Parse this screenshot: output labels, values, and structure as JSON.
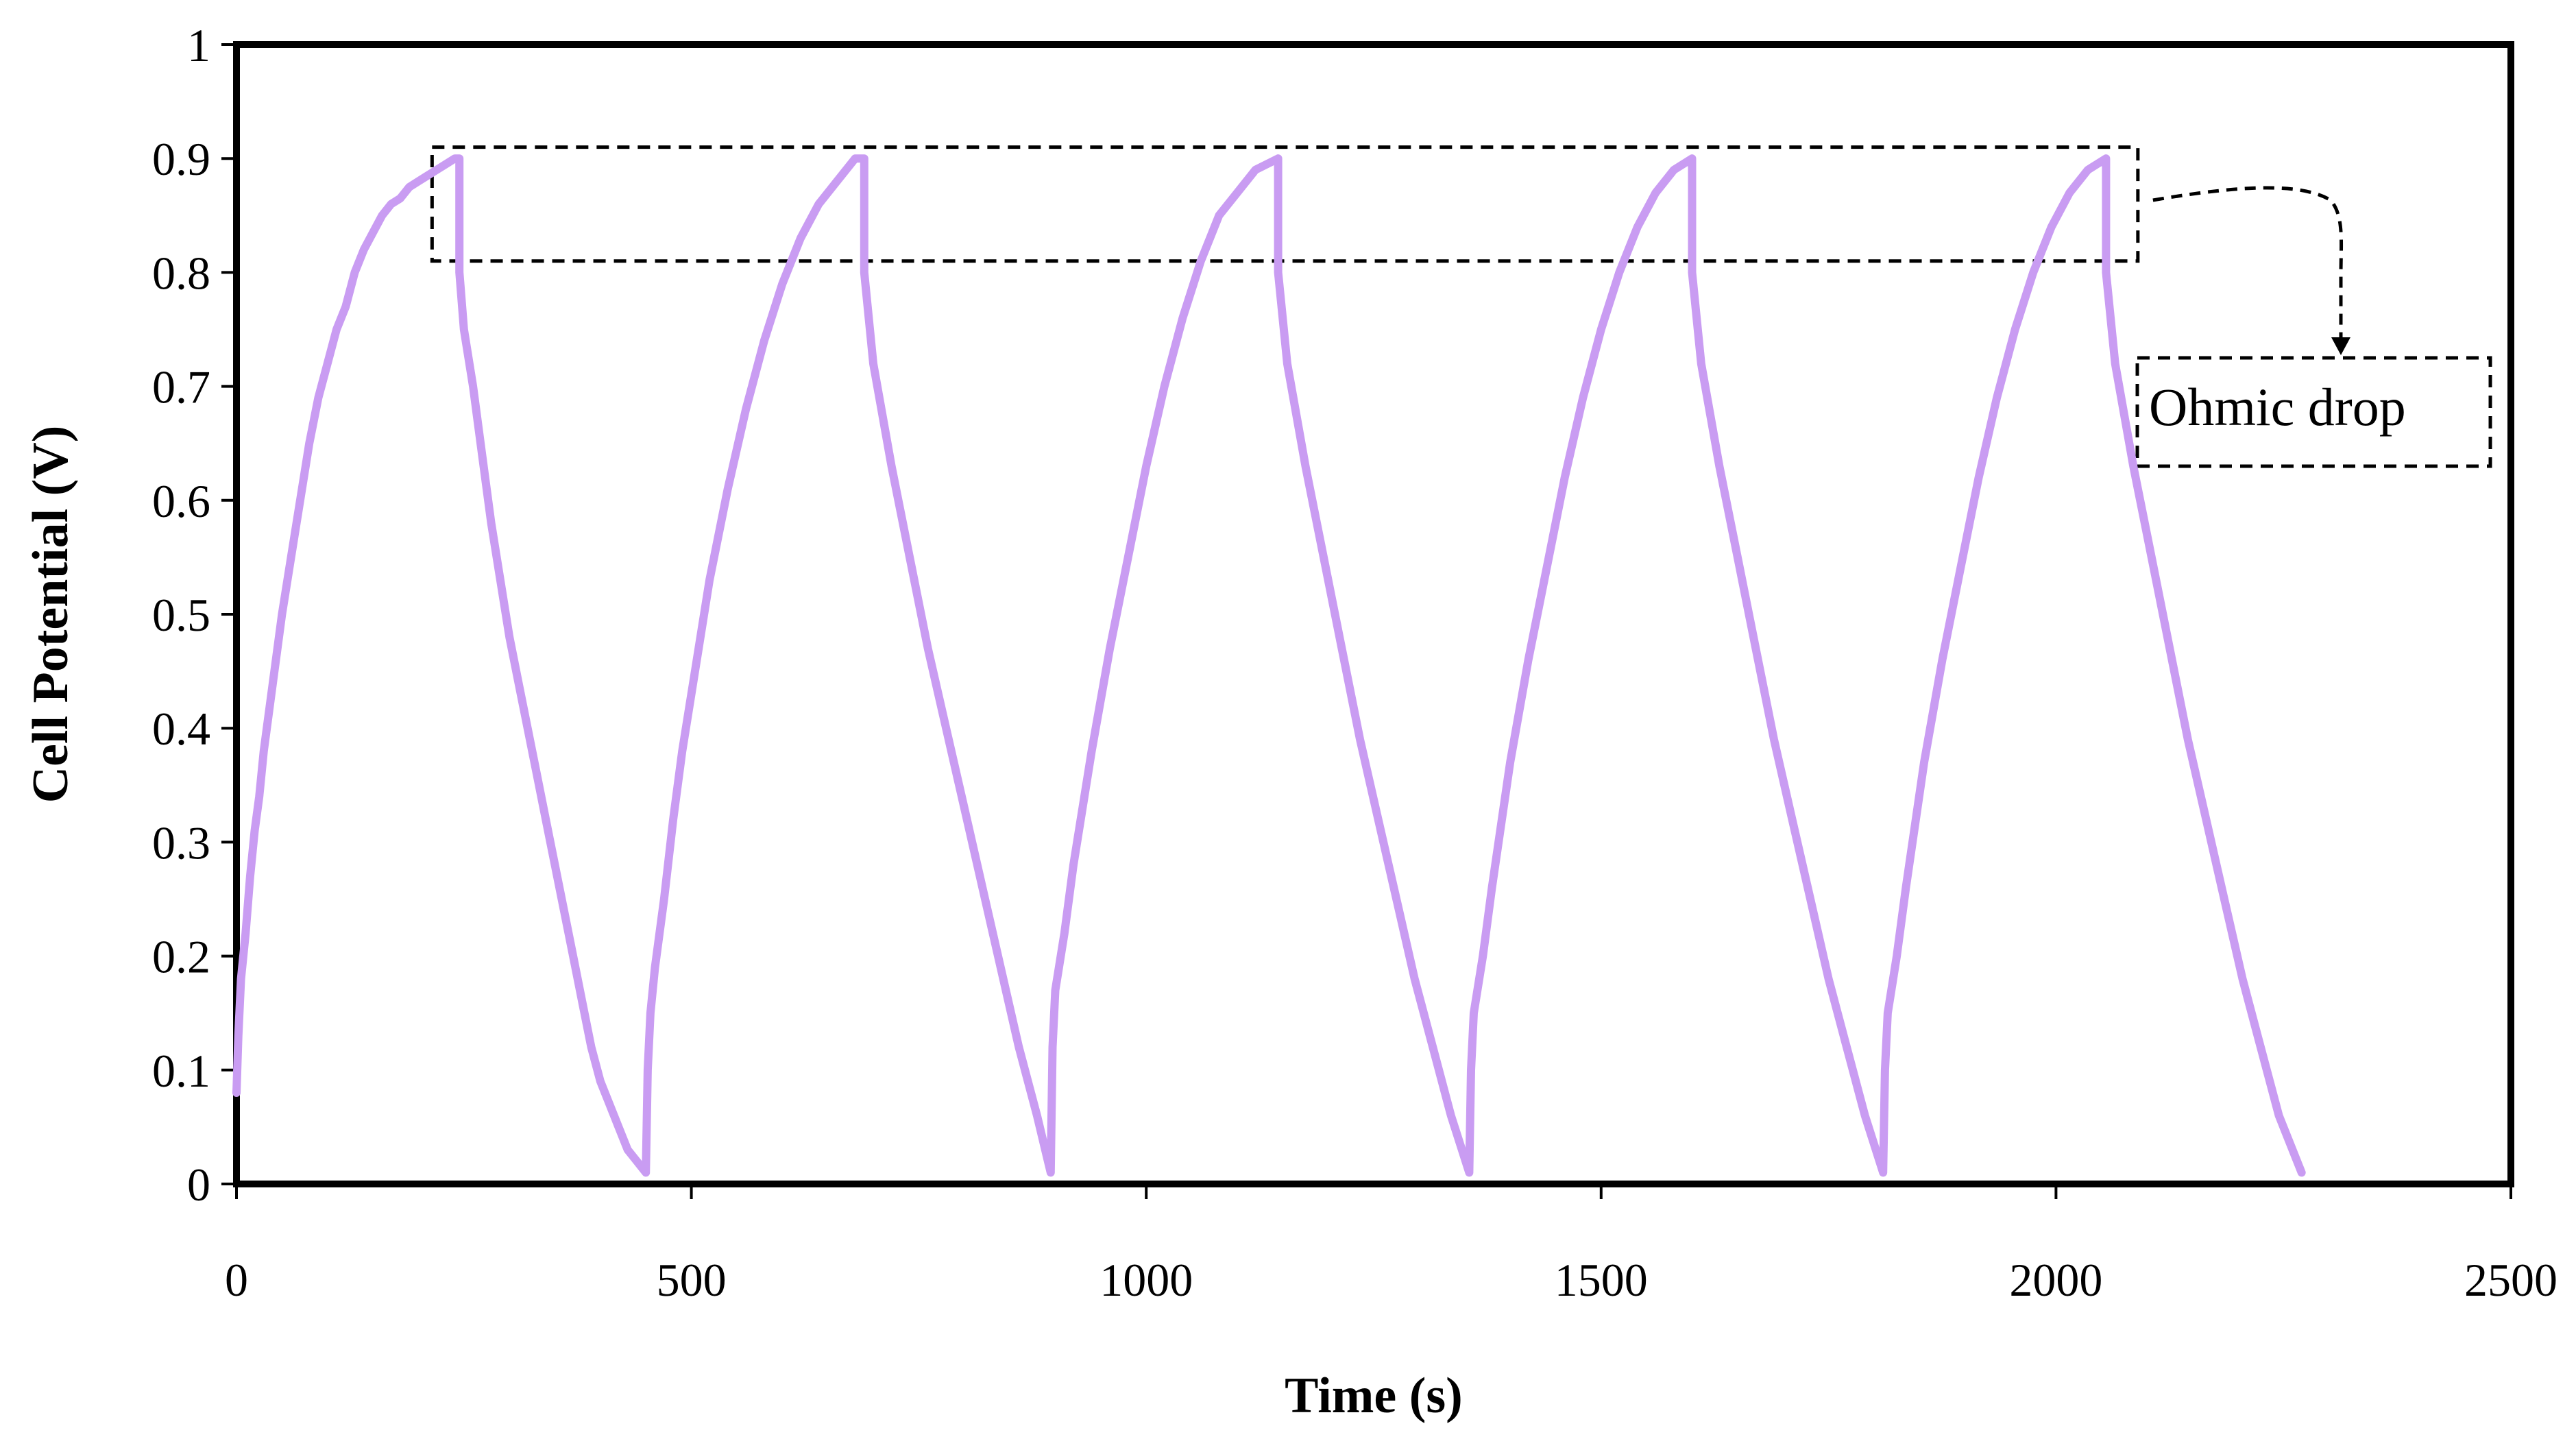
{
  "chart_data": {
    "type": "line",
    "title": "",
    "xlabel": "Time (s)",
    "ylabel": "Cell Potential (V)",
    "xlim": [
      0,
      2500
    ],
    "ylim": [
      0,
      1
    ],
    "xticks": [
      0,
      500,
      1000,
      1500,
      2000,
      2500
    ],
    "yticks": [
      0,
      0.1,
      0.2,
      0.3,
      0.4,
      0.5,
      0.6,
      0.7,
      0.8,
      0.9,
      1
    ],
    "xtick_labels": [
      "0",
      "500",
      "1000",
      "1500",
      "2000",
      "2500"
    ],
    "ytick_labels": [
      "0",
      "0.1",
      "0.2",
      "0.3",
      "0.4",
      "0.5",
      "0.6",
      "0.7",
      "0.8",
      "0.9",
      "1"
    ],
    "grid": false,
    "legend": "none",
    "series": [
      {
        "color": "#c99cf2",
        "x": [
          0,
          2,
          5,
          10,
          15,
          20,
          25,
          30,
          40,
          50,
          60,
          70,
          80,
          90,
          100,
          110,
          120,
          130,
          140,
          150,
          160,
          170,
          180,
          190,
          200,
          210,
          220,
          230,
          240,
          245,
          245,
          250,
          260,
          270,
          280,
          290,
          300,
          310,
          320,
          330,
          340,
          350,
          360,
          370,
          380,
          390,
          400,
          410,
          420,
          430,
          440,
          450,
          452,
          455,
          460,
          470,
          480,
          490,
          500,
          520,
          540,
          560,
          580,
          600,
          620,
          640,
          660,
          680,
          690,
          690,
          700,
          720,
          740,
          760,
          780,
          800,
          820,
          840,
          860,
          880,
          895,
          897,
          900,
          910,
          920,
          940,
          960,
          980,
          1000,
          1020,
          1040,
          1060,
          1080,
          1100,
          1120,
          1145,
          1145,
          1155,
          1175,
          1195,
          1215,
          1235,
          1255,
          1275,
          1295,
          1315,
          1335,
          1355,
          1357,
          1360,
          1370,
          1380,
          1400,
          1420,
          1440,
          1460,
          1480,
          1500,
          1520,
          1540,
          1560,
          1580,
          1600,
          1600,
          1610,
          1630,
          1650,
          1670,
          1690,
          1710,
          1730,
          1750,
          1770,
          1790,
          1810,
          1812,
          1815,
          1825,
          1835,
          1855,
          1875,
          1895,
          1915,
          1935,
          1955,
          1975,
          1995,
          2015,
          2035,
          2055,
          2055,
          2065,
          2085,
          2105,
          2125,
          2145,
          2165,
          2185,
          2205,
          2225,
          2245,
          2270
        ],
        "y": [
          0.08,
          0.13,
          0.18,
          0.22,
          0.27,
          0.31,
          0.34,
          0.38,
          0.44,
          0.5,
          0.55,
          0.6,
          0.65,
          0.69,
          0.72,
          0.75,
          0.77,
          0.8,
          0.82,
          0.835,
          0.85,
          0.86,
          0.865,
          0.875,
          0.88,
          0.885,
          0.89,
          0.895,
          0.9,
          0.9,
          0.8,
          0.75,
          0.7,
          0.64,
          0.58,
          0.53,
          0.48,
          0.44,
          0.4,
          0.36,
          0.32,
          0.28,
          0.24,
          0.2,
          0.16,
          0.12,
          0.09,
          0.07,
          0.05,
          0.03,
          0.02,
          0.01,
          0.1,
          0.15,
          0.19,
          0.25,
          0.32,
          0.38,
          0.43,
          0.53,
          0.61,
          0.68,
          0.74,
          0.79,
          0.83,
          0.86,
          0.88,
          0.9,
          0.9,
          0.8,
          0.72,
          0.63,
          0.55,
          0.47,
          0.4,
          0.33,
          0.26,
          0.19,
          0.12,
          0.06,
          0.01,
          0.12,
          0.17,
          0.22,
          0.28,
          0.38,
          0.47,
          0.55,
          0.63,
          0.7,
          0.76,
          0.81,
          0.85,
          0.87,
          0.89,
          0.9,
          0.8,
          0.72,
          0.63,
          0.55,
          0.47,
          0.39,
          0.32,
          0.25,
          0.18,
          0.12,
          0.06,
          0.01,
          0.1,
          0.15,
          0.2,
          0.26,
          0.37,
          0.46,
          0.54,
          0.62,
          0.69,
          0.75,
          0.8,
          0.84,
          0.87,
          0.89,
          0.9,
          0.8,
          0.72,
          0.63,
          0.55,
          0.47,
          0.39,
          0.32,
          0.25,
          0.18,
          0.12,
          0.06,
          0.01,
          0.1,
          0.15,
          0.2,
          0.26,
          0.37,
          0.46,
          0.54,
          0.62,
          0.69,
          0.75,
          0.8,
          0.84,
          0.87,
          0.89,
          0.9,
          0.8,
          0.72,
          0.63,
          0.55,
          0.47,
          0.39,
          0.32,
          0.25,
          0.18,
          0.12,
          0.06,
          0.01
        ]
      }
    ],
    "annotations": [
      {
        "text": "Ohmic drop",
        "box_x": [
          215,
          2090
        ],
        "box_y": [
          0.81,
          0.91
        ]
      }
    ]
  }
}
